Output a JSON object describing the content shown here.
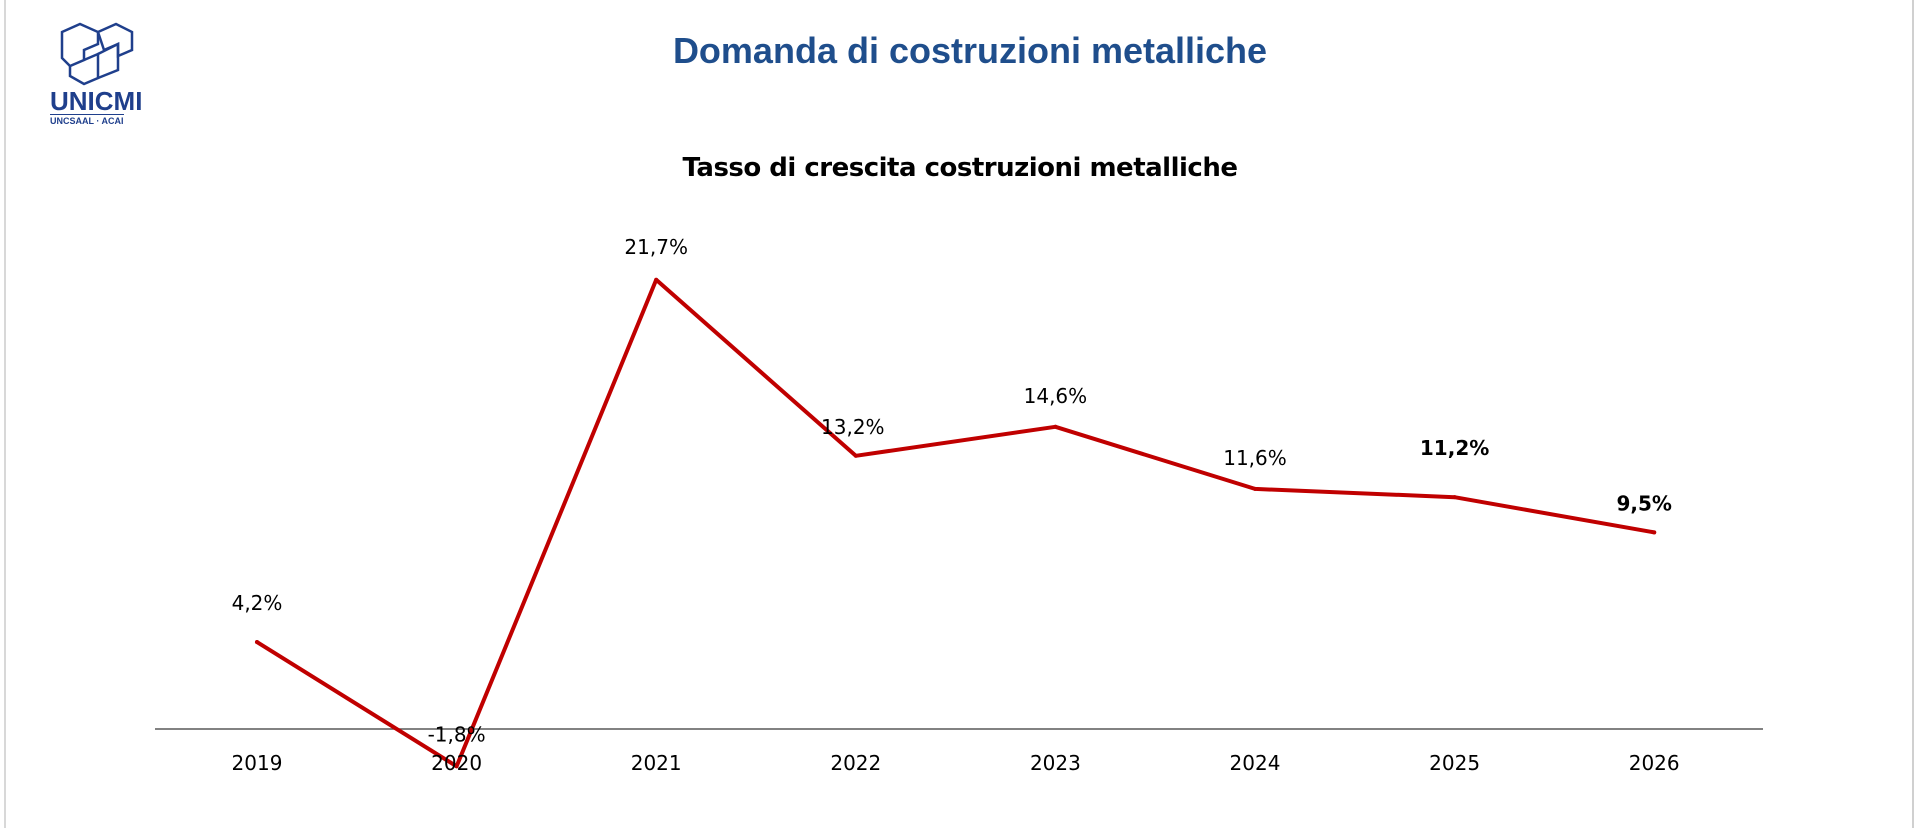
{
  "header": {
    "title": "Domanda di costruzioni metalliche",
    "logo": {
      "name": "UNICMI",
      "subtitle": "UNCSAAL · ACAI"
    }
  },
  "chart_data": {
    "type": "line",
    "title": "Tasso di crescita costruzioni metalliche",
    "xlabel": "",
    "ylabel": "",
    "categories": [
      "2019",
      "2020",
      "2021",
      "2022",
      "2023",
      "2024",
      "2025",
      "2026"
    ],
    "values": [
      4.2,
      -1.8,
      21.7,
      13.2,
      14.6,
      11.6,
      11.2,
      9.5
    ],
    "data_labels": [
      "4,2%",
      "-1,8%",
      "21,7%",
      "13,2%",
      "14,6%",
      "11,6%",
      "11,2%",
      "9,5%"
    ],
    "bold_labels": [
      "2025",
      "2026"
    ],
    "grid": false,
    "legend": "none",
    "colors": {
      "line": "#c00000",
      "negative_label": "#ff0000",
      "axis": "#595959"
    }
  }
}
